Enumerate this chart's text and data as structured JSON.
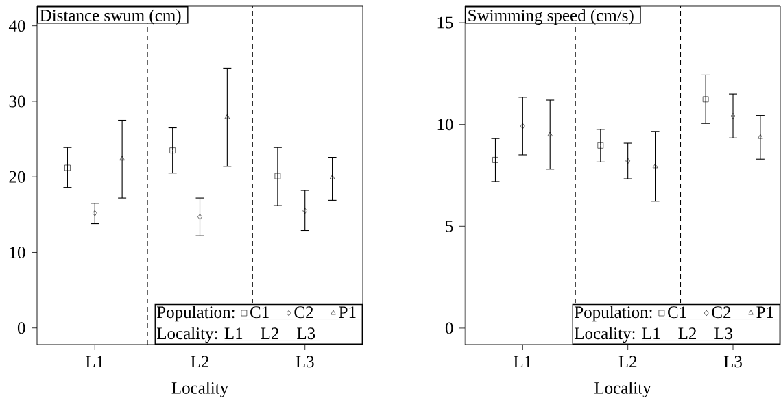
{
  "chart_data": [
    {
      "type": "scatter",
      "title": "Distance swum (cm)",
      "xlabel": "Locality",
      "categories": [
        "L1",
        "L2",
        "L3"
      ],
      "series": [
        {
          "name": "C1",
          "color": "#000000",
          "marker": "square",
          "values": [
            21.2,
            23.5,
            20.1
          ],
          "errors": [
            [
              18.6,
              23.9
            ],
            [
              20.5,
              26.5
            ],
            [
              16.2,
              23.9
            ]
          ]
        },
        {
          "name": "C2",
          "color": "#000000",
          "marker": "diamond",
          "values": [
            15.2,
            14.7,
            15.5
          ],
          "errors": [
            [
              13.8,
              16.5
            ],
            [
              12.2,
              17.2
            ],
            [
              12.9,
              18.2
            ]
          ]
        },
        {
          "name": "P1",
          "color": "#000000",
          "marker": "triangle",
          "values": [
            22.4,
            27.9,
            19.9
          ],
          "errors": [
            [
              17.2,
              27.5
            ],
            [
              21.4,
              34.4
            ],
            [
              16.9,
              22.6
            ]
          ]
        }
      ],
      "ylim": [
        -2.2,
        42.6
      ],
      "yticks": [
        0,
        10,
        20,
        30,
        40
      ],
      "grid": false,
      "legend": "bottom right",
      "annotations": [
        "Population:",
        "Locality:"
      ]
    },
    {
      "type": "scatter",
      "title": "Swimming speed (cm/s)",
      "xlabel": "Locality",
      "categories": [
        "L1",
        "L2",
        "L3"
      ],
      "series": [
        {
          "name": "C1",
          "color": "#000000",
          "marker": "square",
          "values": [
            8.26,
            8.97,
            11.24
          ],
          "errors": [
            [
              7.2,
              9.31
            ],
            [
              8.16,
              9.76
            ],
            [
              10.05,
              12.43
            ]
          ]
        },
        {
          "name": "C2",
          "color": "#000000",
          "marker": "diamond",
          "values": [
            9.92,
            8.21,
            10.41
          ],
          "errors": [
            [
              8.51,
              11.34
            ],
            [
              7.33,
              9.08
            ],
            [
              9.34,
              11.5
            ]
          ]
        },
        {
          "name": "P1",
          "color": "#000000",
          "marker": "triangle",
          "values": [
            9.5,
            7.94,
            9.38
          ],
          "errors": [
            [
              7.81,
              11.2
            ],
            [
              6.23,
              9.66
            ],
            [
              8.3,
              10.44
            ]
          ]
        }
      ],
      "ylim": [
        -0.81,
        15.81
      ],
      "yticks": [
        0,
        5,
        10,
        15
      ],
      "grid": false,
      "legend": "bottom right",
      "annotations": [
        "Population:",
        "Locality:"
      ]
    }
  ]
}
